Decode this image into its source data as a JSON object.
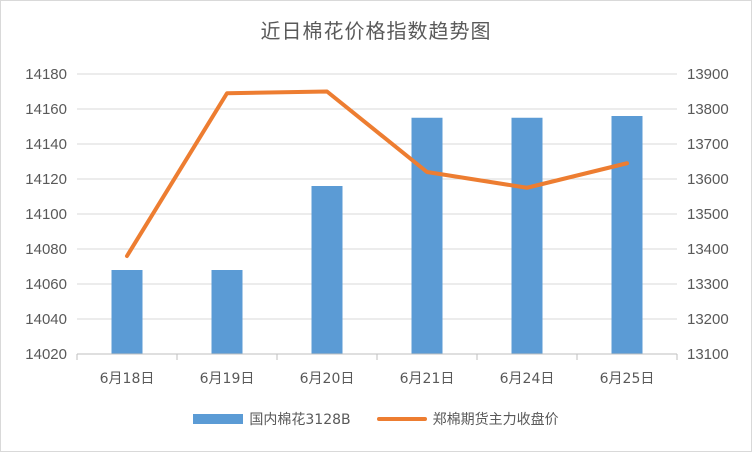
{
  "chart_data": {
    "type": "bar+line",
    "title": "近日棉花价格指数趋势图",
    "categories": [
      "6月18日",
      "6月19日",
      "6月20日",
      "6月21日",
      "6月24日",
      "6月25日"
    ],
    "series": [
      {
        "name": "国内棉花3128B",
        "type": "bar",
        "axis": "left",
        "color": "#5b9bd5",
        "values": [
          14068,
          14068,
          14116,
          14155,
          14155,
          14156
        ]
      },
      {
        "name": "郑棉期货主力收盘价",
        "type": "line",
        "axis": "right",
        "color": "#ed7d31",
        "values": [
          13380,
          13845,
          13850,
          13620,
          13575,
          13645
        ]
      }
    ],
    "y_left": {
      "min": 14020,
      "max": 14180,
      "ticks": [
        "14020",
        "14040",
        "14060",
        "14080",
        "14100",
        "14120",
        "14140",
        "14160",
        "14180"
      ]
    },
    "y_right": {
      "min": 13100,
      "max": 13900,
      "ticks": [
        "13100",
        "13200",
        "13300",
        "13400",
        "13500",
        "13600",
        "13700",
        "13800",
        "13900"
      ]
    },
    "grid": true,
    "legend_position": "bottom"
  }
}
